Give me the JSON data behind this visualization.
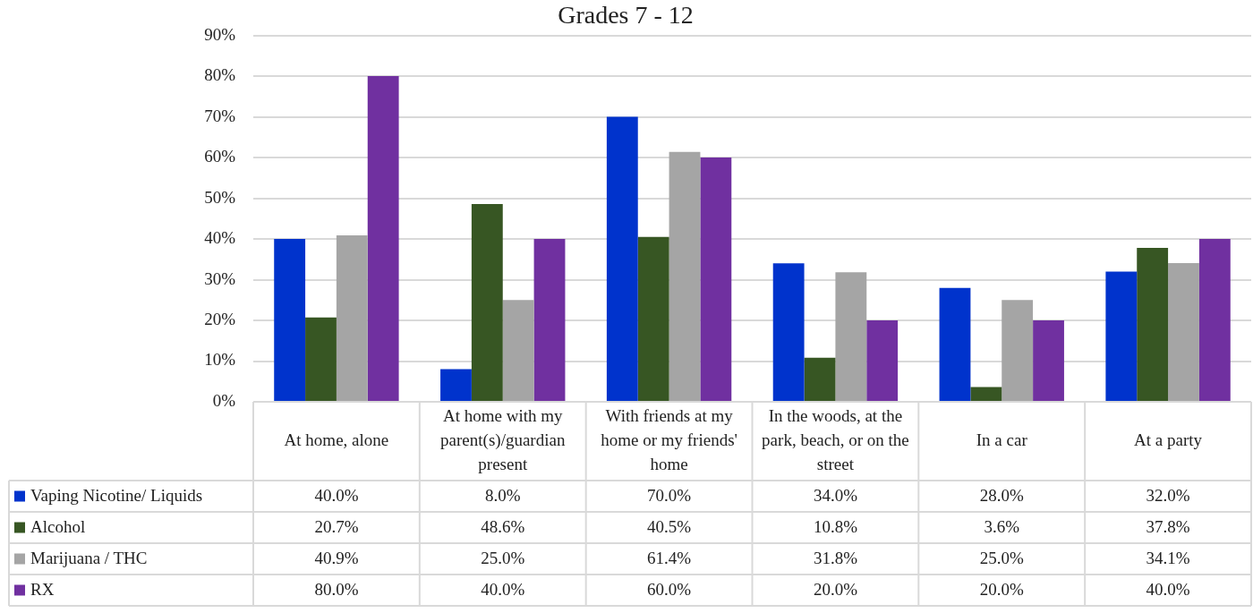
{
  "chart_data": {
    "type": "bar",
    "title": "Grades 7 - 12",
    "categories": [
      "At home, alone",
      "At home with my parent(s)/guardian present",
      "With friends at my home or my friends' home",
      "In the woods, at the park, beach, or on the street",
      "In a car",
      "At a party"
    ],
    "series": [
      {
        "name": "Vaping Nicotine/ Liquids",
        "color": "#0033cc",
        "values": [
          40.0,
          8.0,
          70.0,
          34.0,
          28.0,
          32.0
        ],
        "value_labels": [
          "40.0%",
          "8.0%",
          "70.0%",
          "34.0%",
          "28.0%",
          "32.0%"
        ]
      },
      {
        "name": "Alcohol",
        "color": "#375623",
        "values": [
          20.7,
          48.6,
          40.5,
          10.8,
          3.6,
          37.8
        ],
        "value_labels": [
          "20.7%",
          "48.6%",
          "40.5%",
          "10.8%",
          "3.6%",
          "37.8%"
        ]
      },
      {
        "name": "Marijuana / THC",
        "color": "#a5a5a5",
        "values": [
          40.9,
          25.0,
          61.4,
          31.8,
          25.0,
          34.1
        ],
        "value_labels": [
          "40.9%",
          "25.0%",
          "61.4%",
          "31.8%",
          "25.0%",
          "34.1%"
        ]
      },
      {
        "name": "RX",
        "color": "#7030a0",
        "values": [
          80.0,
          40.0,
          60.0,
          20.0,
          20.0,
          40.0
        ],
        "value_labels": [
          "80.0%",
          "40.0%",
          "60.0%",
          "20.0%",
          "20.0%",
          "40.0%"
        ]
      }
    ],
    "ylim": [
      0,
      90
    ],
    "yticks": [
      {
        "value": 0,
        "label": "0%"
      },
      {
        "value": 10,
        "label": "10%"
      },
      {
        "value": 20,
        "label": "20%"
      },
      {
        "value": 30,
        "label": "30%"
      },
      {
        "value": 40,
        "label": "40%"
      },
      {
        "value": 50,
        "label": "50%"
      },
      {
        "value": 60,
        "label": "60%"
      },
      {
        "value": 70,
        "label": "70%"
      },
      {
        "value": 80,
        "label": "80%"
      },
      {
        "value": 90,
        "label": "90%"
      }
    ],
    "grid": "y",
    "legend": "bottom"
  }
}
